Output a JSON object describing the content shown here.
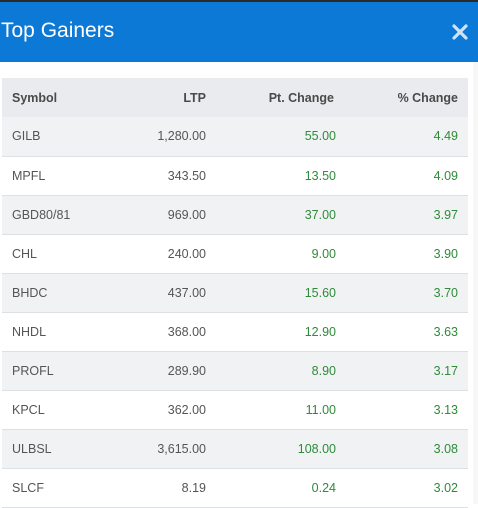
{
  "header": {
    "title": "Top Gainers",
    "close_icon": "close-icon",
    "background_color": "#0d79d6"
  },
  "table": {
    "columns": [
      "Symbol",
      "LTP",
      "Pt. Change",
      "% Change"
    ],
    "positive_color": "#2e8b3a",
    "rows": [
      {
        "symbol": "GILB",
        "ltp": "1,280.00",
        "pt_change": "55.00",
        "pct_change": "4.49"
      },
      {
        "symbol": "MPFL",
        "ltp": "343.50",
        "pt_change": "13.50",
        "pct_change": "4.09"
      },
      {
        "symbol": "GBD80/81",
        "ltp": "969.00",
        "pt_change": "37.00",
        "pct_change": "3.97"
      },
      {
        "symbol": "CHL",
        "ltp": "240.00",
        "pt_change": "9.00",
        "pct_change": "3.90"
      },
      {
        "symbol": "BHDC",
        "ltp": "437.00",
        "pt_change": "15.60",
        "pct_change": "3.70"
      },
      {
        "symbol": "NHDL",
        "ltp": "368.00",
        "pt_change": "12.90",
        "pct_change": "3.63"
      },
      {
        "symbol": "PROFL",
        "ltp": "289.90",
        "pt_change": "8.90",
        "pct_change": "3.17"
      },
      {
        "symbol": "KPCL",
        "ltp": "362.00",
        "pt_change": "11.00",
        "pct_change": "3.13"
      },
      {
        "symbol": "ULBSL",
        "ltp": "3,615.00",
        "pt_change": "108.00",
        "pct_change": "3.08"
      },
      {
        "symbol": "SLCF",
        "ltp": "8.19",
        "pt_change": "0.24",
        "pct_change": "3.02"
      }
    ]
  }
}
